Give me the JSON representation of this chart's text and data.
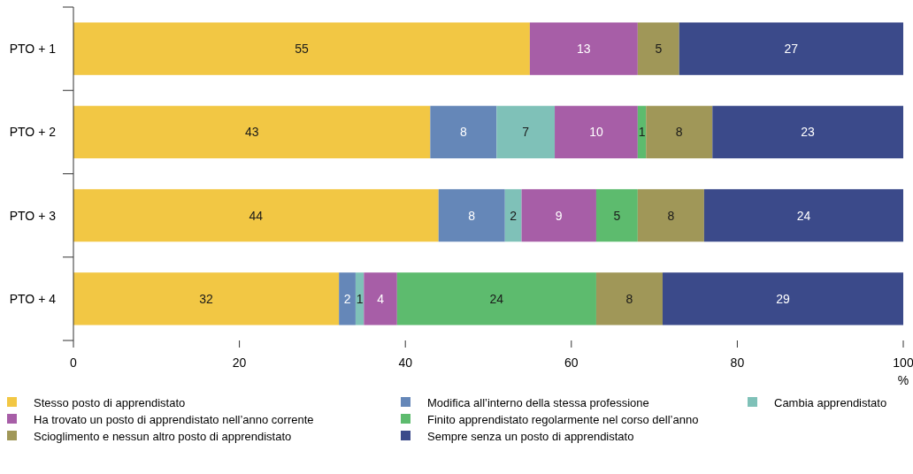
{
  "chart_data": {
    "type": "bar",
    "orientation": "horizontal",
    "stacked": true,
    "categories": [
      "PTO + 1",
      "PTO + 2",
      "PTO + 3",
      "PTO + 4"
    ],
    "series": [
      {
        "name": "Stesso posto di apprendistato",
        "color": "#f2c744",
        "values": [
          55,
          43,
          44,
          32
        ]
      },
      {
        "name": "Modifica all’interno della stessa professione",
        "color": "#6587b8",
        "values": [
          null,
          8,
          8,
          2
        ]
      },
      {
        "name": "Cambia apprendistato",
        "color": "#7fc1b8",
        "values": [
          null,
          7,
          2,
          1
        ]
      },
      {
        "name": "Ha trovato un posto di apprendistato nell’anno corrente",
        "color": "#a75ea7",
        "values": [
          13,
          10,
          9,
          4
        ]
      },
      {
        "name": "Finito apprendistato regolarmente nel corso dell’anno",
        "color": "#5dbb6e",
        "values": [
          null,
          1,
          5,
          24
        ]
      },
      {
        "name": "Scioglimento e nessun altro posto di apprendistato",
        "color": "#a09758",
        "values": [
          5,
          8,
          8,
          8
        ]
      },
      {
        "name": "Sempre senza un posto di apprendistato",
        "color": "#3b4a8a",
        "values": [
          27,
          23,
          24,
          29
        ]
      }
    ],
    "xlim": [
      0,
      100
    ],
    "xticks": [
      0,
      20,
      40,
      60,
      80,
      100
    ],
    "xlabel": "%",
    "data_labels": true,
    "legend": "bottom"
  }
}
